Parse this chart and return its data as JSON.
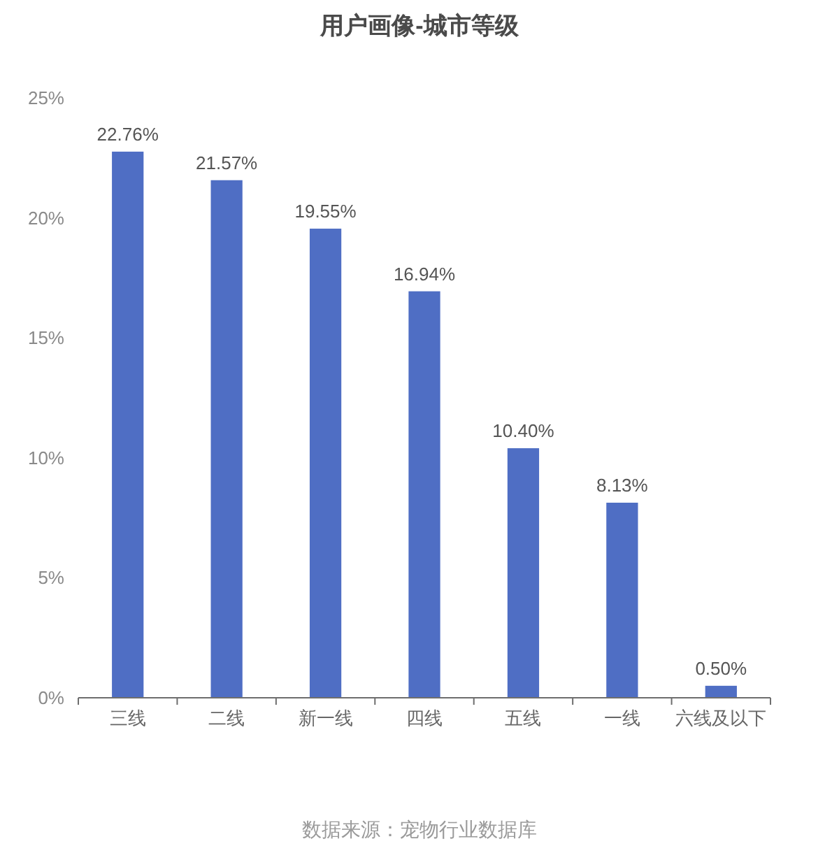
{
  "chart_data": {
    "type": "bar",
    "title": "用户画像-城市等级",
    "categories": [
      "三线",
      "二线",
      "新一线",
      "四线",
      "五线",
      "一线",
      "六线及以下"
    ],
    "values": [
      22.76,
      21.57,
      19.55,
      16.94,
      10.4,
      8.13,
      0.5
    ],
    "value_labels": [
      "22.76%",
      "21.57%",
      "19.55%",
      "16.94%",
      "10.40%",
      "8.13%",
      "0.50%"
    ],
    "color": "#4f6ec4",
    "ylim": [
      0,
      25
    ],
    "yticks": [
      {
        "value": 0,
        "label": "0%"
      },
      {
        "value": 5,
        "label": "5%"
      },
      {
        "value": 10,
        "label": "10%"
      },
      {
        "value": 15,
        "label": "15%"
      },
      {
        "value": 20,
        "label": "20%"
      },
      {
        "value": 25,
        "label": "25%"
      }
    ],
    "annotations": [
      "数据来源：宠物行业数据库"
    ]
  }
}
